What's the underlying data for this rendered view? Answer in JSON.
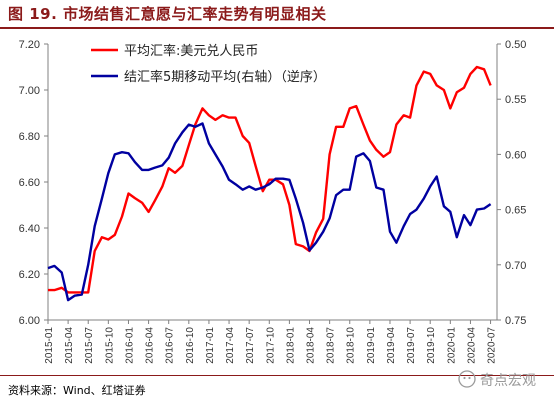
{
  "header": {
    "title": "图 19. 市场结售汇意愿与汇率走势有明显相关"
  },
  "footer": {
    "source": "资料来源：Wind、红塔证券",
    "watermark": "奇点宏观"
  },
  "colors": {
    "red": "#ff0000",
    "blue": "#0000a0",
    "title": "#8b1a1a"
  },
  "chart_data": {
    "type": "line",
    "title": "",
    "grid": false,
    "legend_position": "top-center",
    "x_categories": [
      "2015-01",
      "2015-04",
      "2015-07",
      "2015-10",
      "2016-01",
      "2016-04",
      "2016-07",
      "2016-10",
      "2017-01",
      "2017-04",
      "2017-07",
      "2017-10",
      "2018-01",
      "2018-04",
      "2018-07",
      "2018-10",
      "2019-01",
      "2019-04",
      "2019-07",
      "2019-10",
      "2020-01",
      "2020-04",
      "2020-07"
    ],
    "x_range": [
      2015.0,
      2020.58
    ],
    "y_left": {
      "label": "",
      "range": [
        6.0,
        7.2
      ],
      "ticks": [
        "6.00",
        "6.20",
        "6.40",
        "6.60",
        "6.80",
        "7.00",
        "7.20"
      ]
    },
    "y_right": {
      "label": "",
      "range": [
        0.5,
        0.75
      ],
      "reversed": true,
      "ticks": [
        "0.50",
        "0.55",
        "0.60",
        "0.65",
        "0.70",
        "0.75"
      ]
    },
    "series": [
      {
        "name": "平均汇率:美元兑人民币",
        "axis": "left",
        "color": "#ff0000",
        "points": [
          [
            2015.0,
            6.13
          ],
          [
            2015.08,
            6.13
          ],
          [
            2015.17,
            6.14
          ],
          [
            2015.25,
            6.12
          ],
          [
            2015.33,
            6.12
          ],
          [
            2015.42,
            6.12
          ],
          [
            2015.5,
            6.12
          ],
          [
            2015.58,
            6.3
          ],
          [
            2015.67,
            6.36
          ],
          [
            2015.75,
            6.35
          ],
          [
            2015.83,
            6.37
          ],
          [
            2015.92,
            6.45
          ],
          [
            2016.0,
            6.55
          ],
          [
            2016.08,
            6.53
          ],
          [
            2016.17,
            6.51
          ],
          [
            2016.25,
            6.47
          ],
          [
            2016.33,
            6.52
          ],
          [
            2016.42,
            6.58
          ],
          [
            2016.5,
            6.66
          ],
          [
            2016.58,
            6.64
          ],
          [
            2016.67,
            6.67
          ],
          [
            2016.75,
            6.76
          ],
          [
            2016.83,
            6.85
          ],
          [
            2016.92,
            6.92
          ],
          [
            2017.0,
            6.89
          ],
          [
            2017.08,
            6.87
          ],
          [
            2017.17,
            6.89
          ],
          [
            2017.25,
            6.88
          ],
          [
            2017.33,
            6.88
          ],
          [
            2017.42,
            6.8
          ],
          [
            2017.5,
            6.77
          ],
          [
            2017.58,
            6.67
          ],
          [
            2017.67,
            6.56
          ],
          [
            2017.75,
            6.61
          ],
          [
            2017.83,
            6.61
          ],
          [
            2017.92,
            6.59
          ],
          [
            2018.0,
            6.5
          ],
          [
            2018.08,
            6.33
          ],
          [
            2018.17,
            6.32
          ],
          [
            2018.25,
            6.3
          ],
          [
            2018.33,
            6.38
          ],
          [
            2018.42,
            6.44
          ],
          [
            2018.5,
            6.72
          ],
          [
            2018.58,
            6.84
          ],
          [
            2018.67,
            6.84
          ],
          [
            2018.75,
            6.92
          ],
          [
            2018.83,
            6.93
          ],
          [
            2018.92,
            6.85
          ],
          [
            2019.0,
            6.78
          ],
          [
            2019.08,
            6.74
          ],
          [
            2019.17,
            6.71
          ],
          [
            2019.25,
            6.73
          ],
          [
            2019.33,
            6.85
          ],
          [
            2019.42,
            6.89
          ],
          [
            2019.5,
            6.88
          ],
          [
            2019.58,
            7.02
          ],
          [
            2019.67,
            7.08
          ],
          [
            2019.75,
            7.07
          ],
          [
            2019.83,
            7.02
          ],
          [
            2019.92,
            7.0
          ],
          [
            2020.0,
            6.92
          ],
          [
            2020.08,
            6.99
          ],
          [
            2020.17,
            7.01
          ],
          [
            2020.25,
            7.07
          ],
          [
            2020.33,
            7.1
          ],
          [
            2020.42,
            7.09
          ],
          [
            2020.5,
            7.02
          ]
        ]
      },
      {
        "name": "结汇率5期移动平均(右轴）（逆序）",
        "axis": "right",
        "color": "#0000a0",
        "points": [
          [
            2015.0,
            0.703
          ],
          [
            2015.08,
            0.701
          ],
          [
            2015.17,
            0.707
          ],
          [
            2015.25,
            0.732
          ],
          [
            2015.33,
            0.728
          ],
          [
            2015.42,
            0.727
          ],
          [
            2015.5,
            0.7
          ],
          [
            2015.58,
            0.665
          ],
          [
            2015.67,
            0.64
          ],
          [
            2015.75,
            0.617
          ],
          [
            2015.83,
            0.6
          ],
          [
            2015.92,
            0.598
          ],
          [
            2016.0,
            0.599
          ],
          [
            2016.08,
            0.607
          ],
          [
            2016.17,
            0.614
          ],
          [
            2016.25,
            0.614
          ],
          [
            2016.33,
            0.612
          ],
          [
            2016.42,
            0.61
          ],
          [
            2016.5,
            0.603
          ],
          [
            2016.58,
            0.59
          ],
          [
            2016.67,
            0.58
          ],
          [
            2016.75,
            0.573
          ],
          [
            2016.83,
            0.575
          ],
          [
            2016.92,
            0.572
          ],
          [
            2017.0,
            0.59
          ],
          [
            2017.08,
            0.6
          ],
          [
            2017.17,
            0.611
          ],
          [
            2017.25,
            0.623
          ],
          [
            2017.33,
            0.627
          ],
          [
            2017.42,
            0.632
          ],
          [
            2017.5,
            0.629
          ],
          [
            2017.58,
            0.632
          ],
          [
            2017.67,
            0.63
          ],
          [
            2017.75,
            0.627
          ],
          [
            2017.83,
            0.622
          ],
          [
            2017.92,
            0.622
          ],
          [
            2018.0,
            0.623
          ],
          [
            2018.08,
            0.64
          ],
          [
            2018.17,
            0.662
          ],
          [
            2018.25,
            0.687
          ],
          [
            2018.33,
            0.68
          ],
          [
            2018.42,
            0.67
          ],
          [
            2018.5,
            0.658
          ],
          [
            2018.58,
            0.637
          ],
          [
            2018.67,
            0.632
          ],
          [
            2018.75,
            0.632
          ],
          [
            2018.83,
            0.602
          ],
          [
            2018.92,
            0.599
          ],
          [
            2019.0,
            0.606
          ],
          [
            2019.08,
            0.63
          ],
          [
            2019.17,
            0.632
          ],
          [
            2019.25,
            0.67
          ],
          [
            2019.33,
            0.68
          ],
          [
            2019.42,
            0.665
          ],
          [
            2019.5,
            0.654
          ],
          [
            2019.58,
            0.65
          ],
          [
            2019.67,
            0.64
          ],
          [
            2019.75,
            0.629
          ],
          [
            2019.83,
            0.62
          ],
          [
            2019.92,
            0.647
          ],
          [
            2020.0,
            0.652
          ],
          [
            2020.08,
            0.675
          ],
          [
            2020.17,
            0.655
          ],
          [
            2020.25,
            0.664
          ],
          [
            2020.33,
            0.65
          ],
          [
            2020.42,
            0.649
          ],
          [
            2020.5,
            0.645
          ]
        ]
      }
    ]
  }
}
